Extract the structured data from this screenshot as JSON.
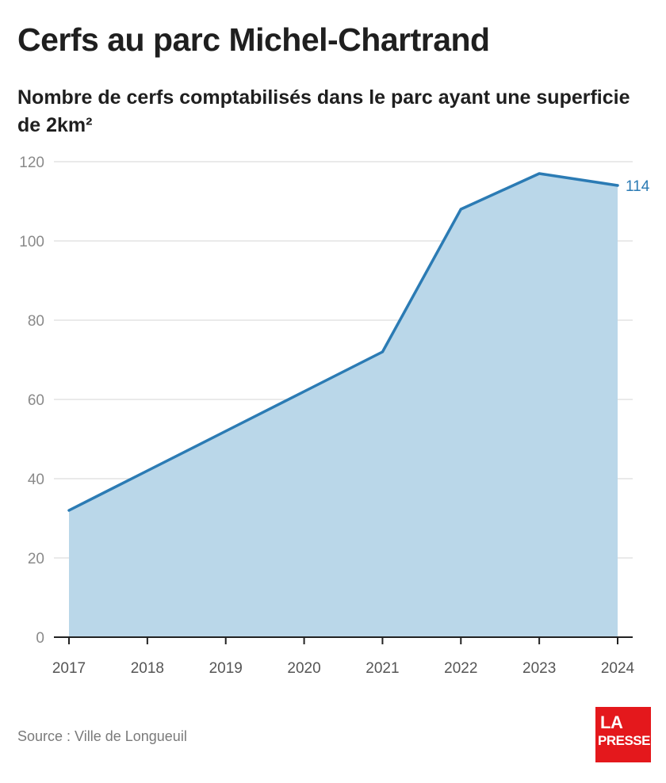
{
  "title": "Cerfs au parc Michel-Chartrand",
  "subtitle": "Nombre de cerfs comptabilisés dans le parc ayant une superficie de 2km²",
  "source": "Source : Ville de Longueuil",
  "logo": {
    "line1": "LA",
    "line2": "PRESSE"
  },
  "colors": {
    "line": "#2b7bb4",
    "fill": "#bad7e9",
    "grid": "#dddddd",
    "axis": "#222222",
    "tick_text_y": "#8a8a8a",
    "tick_text_x": "#555555",
    "end_label": "#2b7bb4",
    "logo_bg": "#e4181c"
  },
  "chart_data": {
    "type": "area",
    "x": [
      "2017",
      "2018",
      "2019",
      "2020",
      "2021",
      "2022",
      "2023",
      "2024"
    ],
    "series": [
      {
        "values": [
          32,
          42,
          52,
          62,
          72,
          108,
          117,
          114
        ]
      }
    ],
    "ylim": [
      0,
      120
    ],
    "yticks": [
      0,
      20,
      40,
      60,
      80,
      100,
      120
    ],
    "grid": true,
    "end_label": "114"
  }
}
